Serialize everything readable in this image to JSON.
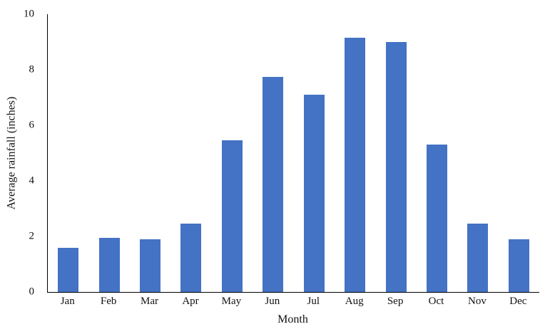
{
  "chart_data": {
    "type": "bar",
    "title": "",
    "categories": [
      "Jan",
      "Feb",
      "Mar",
      "Apr",
      "May",
      "Jun",
      "Jul",
      "Aug",
      "Sep",
      "Oct",
      "Nov",
      "Dec"
    ],
    "values": [
      1.6,
      1.95,
      1.9,
      2.45,
      5.45,
      7.75,
      7.1,
      9.15,
      9.0,
      5.3,
      2.45,
      1.9
    ],
    "xlabel": "Month",
    "ylabel": "Average rainfall (inches)",
    "ylim": [
      0,
      10
    ],
    "yticks": [
      0,
      2,
      4,
      6,
      8,
      10
    ],
    "bar_color": "#4472C4",
    "axis_color": "#000000",
    "grid": false,
    "legend": false
  }
}
